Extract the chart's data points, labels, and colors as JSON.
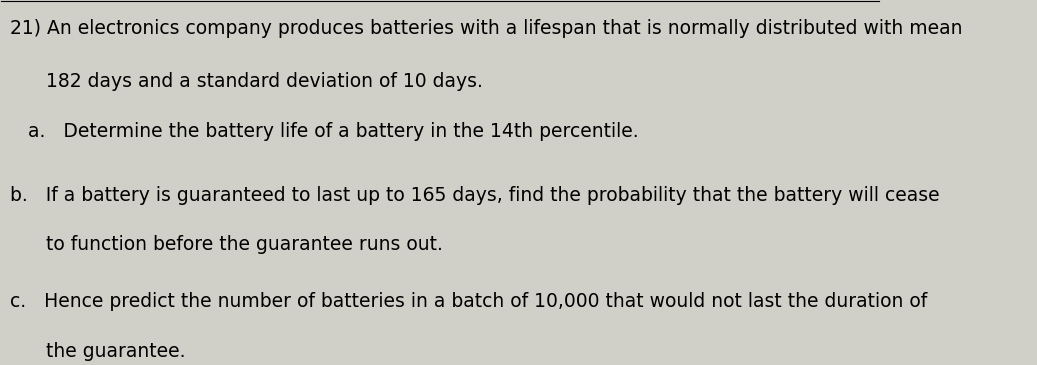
{
  "background_color": "#d0cfc8",
  "text_color": "#000000",
  "figsize": [
    10.37,
    3.65
  ],
  "dpi": 100,
  "line1": "21) An electronics company produces batteries with a lifespan that is normally distributed with mean",
  "line2": "      182 days and a standard deviation of 10 days.",
  "line3": "   a.   Determine the battery life of a battery in the 14th percentile.",
  "line_b1": "b.   If a battery is guaranteed to last up to 165 days, find the probability that the battery will cease",
  "line_b2": "      to function before the guarantee runs out.",
  "line_c1": "c.   Hence predict the number of batteries in a batch of 10,000 that would not last the duration of",
  "line_c2": "      the guarantee.",
  "font_size": 13.5,
  "font_family": "DejaVu Sans"
}
